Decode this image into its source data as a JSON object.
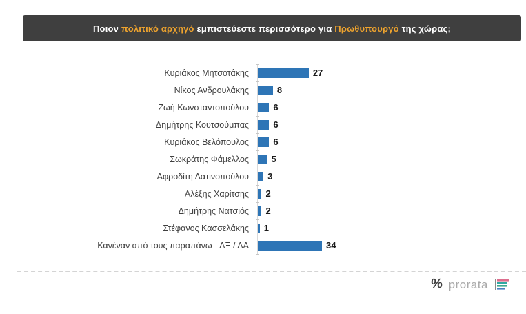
{
  "header": {
    "question_parts": [
      {
        "text": "Ποιον ",
        "highlight": false
      },
      {
        "text": "πολιτικό αρχηγό",
        "highlight": true
      },
      {
        "text": " εμπιστεύεστε περισσότερο για ",
        "highlight": false
      },
      {
        "text": "Πρωθυπουργό",
        "highlight": true
      },
      {
        "text": " της χώρας;",
        "highlight": false
      }
    ],
    "background_color": "#3F3F3F",
    "text_color": "#FFFFFF",
    "highlight_color": "#EEA32E"
  },
  "chart_data": {
    "type": "bar",
    "orientation": "horizontal",
    "title": "Ποιον πολιτικό αρχηγό εμπιστεύεστε περισσότερο για Πρωθυπουργό της χώρας;",
    "categories": [
      "Κυριάκος Μητσοτάκης",
      "Νίκος Ανδρουλάκης",
      "Ζωή Κωνσταντοπούλου",
      "Δημήτρης Κουτσούμπας",
      "Κυριάκος Βελόπουλος",
      "Σωκράτης Φάμελλος",
      "Αφροδίτη Λατινοπούλου",
      "Αλέξης Χαρίτσης",
      "Δημήτρης Νατσιός",
      "Στέφανος Κασσελάκης",
      "Κανέναν από τους παραπάνω - ΔΞ / ΔΑ"
    ],
    "values": [
      27,
      8,
      6,
      6,
      6,
      5,
      3,
      2,
      2,
      1,
      34
    ],
    "xlim": [
      0,
      34
    ],
    "bar_color": "#2E75B6",
    "value_labels_shown": true,
    "grid": false,
    "legend": false
  },
  "footer": {
    "logo_percent": "%",
    "logo_text": "prorata",
    "logo_bar_colors": [
      "#DD6E8E",
      "#2FA9A3",
      "#3FA98F",
      "#4A7FC1"
    ],
    "logo_axis_color": "#8A8A8A"
  }
}
